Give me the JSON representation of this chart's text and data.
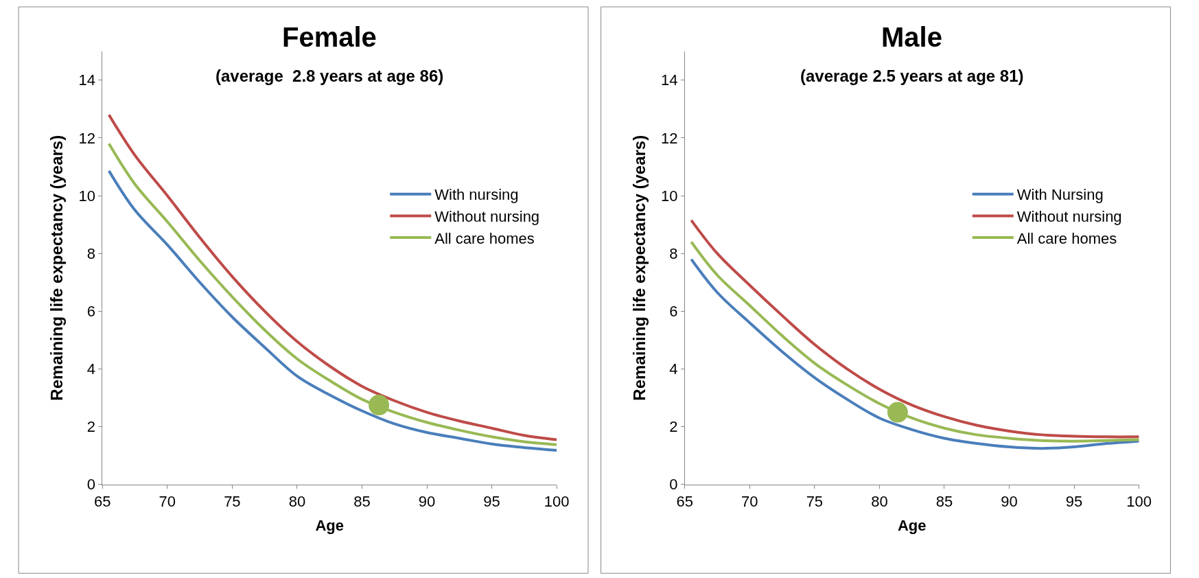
{
  "chart_data": [
    {
      "type": "line",
      "title": "Female",
      "subtitle": "(average  2.8 years at age 86)",
      "xlabel": "Age",
      "ylabel": "Remaining life expectancy (years)",
      "xlim": [
        65,
        100
      ],
      "xticks": [
        65,
        70,
        75,
        80,
        85,
        90,
        95,
        100
      ],
      "ylim": [
        0,
        15
      ],
      "yticks": [
        0,
        2,
        4,
        6,
        8,
        10,
        12,
        14
      ],
      "legend": "right",
      "line_style": "solid",
      "marker": "none",
      "series": [
        {
          "name": "With nursing",
          "color": "#4a7ebb",
          "x": [
            65.5,
            67.5,
            70,
            72.5,
            75,
            77.5,
            80,
            82.5,
            85,
            87.5,
            90,
            92.5,
            95,
            97.5,
            100
          ],
          "values": [
            10.86,
            9.5,
            8.3,
            7.0,
            5.8,
            4.75,
            3.75,
            3.1,
            2.55,
            2.1,
            1.8,
            1.6,
            1.4,
            1.28,
            1.18
          ]
        },
        {
          "name": "Without nursing",
          "color": "#be4b48",
          "x": [
            65.5,
            67.5,
            70,
            72.5,
            75,
            77.5,
            80,
            82.5,
            85,
            87.5,
            90,
            92.5,
            95,
            97.5,
            100
          ],
          "values": [
            12.8,
            11.4,
            10.0,
            8.55,
            7.2,
            6.0,
            4.95,
            4.1,
            3.4,
            2.9,
            2.5,
            2.2,
            1.95,
            1.7,
            1.55
          ]
        },
        {
          "name": "All care homes",
          "color": "#98b954",
          "x": [
            65.5,
            67.5,
            70,
            72.5,
            75,
            77.5,
            80,
            82.5,
            85,
            87.5,
            90,
            92.5,
            95,
            97.5,
            100
          ],
          "values": [
            11.8,
            10.4,
            9.1,
            7.75,
            6.5,
            5.35,
            4.35,
            3.6,
            2.95,
            2.5,
            2.15,
            1.88,
            1.65,
            1.48,
            1.38
          ]
        },
        {
          "type": "scatter",
          "marker": "circle",
          "color": "#98b954",
          "x": [
            86.3
          ],
          "values": [
            2.75
          ]
        }
      ]
    },
    {
      "type": "line",
      "title": "Male",
      "subtitle": "(average 2.5 years at age 81)",
      "xlabel": "Age",
      "ylabel": "Remaining life expectancy (years)",
      "xlim": [
        65,
        100
      ],
      "xticks": [
        65,
        70,
        75,
        80,
        85,
        90,
        95,
        100
      ],
      "ylim": [
        0,
        15
      ],
      "yticks": [
        0,
        2,
        4,
        6,
        8,
        10,
        12,
        14
      ],
      "legend": "right",
      "line_style": "solid",
      "marker": "none",
      "series": [
        {
          "name": "With Nursing",
          "color": "#4a7ebb",
          "x": [
            65.5,
            67.5,
            70,
            72.5,
            75,
            77.5,
            80,
            82.5,
            85,
            87.5,
            90,
            92.5,
            95,
            97.5,
            100
          ],
          "values": [
            7.8,
            6.65,
            5.6,
            4.6,
            3.7,
            2.95,
            2.3,
            1.9,
            1.6,
            1.42,
            1.3,
            1.25,
            1.3,
            1.42,
            1.5
          ]
        },
        {
          "name": "Without nursing",
          "color": "#be4b48",
          "x": [
            65.5,
            67.5,
            70,
            72.5,
            75,
            77.5,
            80,
            82.5,
            85,
            87.5,
            90,
            92.5,
            95,
            97.5,
            100
          ],
          "values": [
            9.15,
            8.0,
            6.9,
            5.85,
            4.85,
            4.0,
            3.3,
            2.75,
            2.35,
            2.05,
            1.85,
            1.72,
            1.67,
            1.65,
            1.65
          ]
        },
        {
          "name": "All care homes",
          "color": "#98b954",
          "x": [
            65.5,
            67.5,
            70,
            72.5,
            75,
            77.5,
            80,
            82.5,
            85,
            87.5,
            90,
            92.5,
            95,
            97.5,
            100
          ],
          "values": [
            8.4,
            7.25,
            6.2,
            5.15,
            4.2,
            3.45,
            2.8,
            2.3,
            1.95,
            1.72,
            1.6,
            1.52,
            1.5,
            1.52,
            1.55
          ]
        },
        {
          "type": "scatter",
          "marker": "circle",
          "color": "#98b954",
          "x": [
            81.4
          ],
          "values": [
            2.5
          ]
        }
      ]
    }
  ]
}
